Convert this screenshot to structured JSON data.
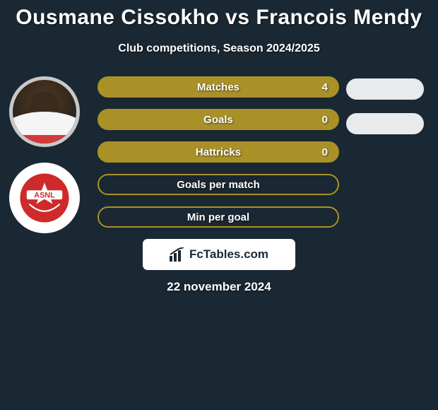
{
  "title": "Ousmane Cissokho vs Francois Mendy",
  "subtitle": "Club competitions, Season 2024/2025",
  "date": "22 november 2024",
  "brand": "FcTables.com",
  "colors": {
    "background": "#1a2833",
    "pill_fill": "#a99128",
    "oval_fill": "#e8eaec",
    "club_primary": "#cf2a2a",
    "club_text": "#ffffff"
  },
  "club_badge_text": "ASNL",
  "stats": [
    {
      "label": "Matches",
      "value": "4",
      "filled": true,
      "show_value": true,
      "show_right_oval": true
    },
    {
      "label": "Goals",
      "value": "0",
      "filled": true,
      "show_value": true,
      "show_right_oval": true
    },
    {
      "label": "Hattricks",
      "value": "0",
      "filled": true,
      "show_value": true,
      "show_right_oval": false
    },
    {
      "label": "Goals per match",
      "value": "",
      "filled": false,
      "show_value": false,
      "show_right_oval": false
    },
    {
      "label": "Min per goal",
      "value": "",
      "filled": false,
      "show_value": false,
      "show_right_oval": false
    }
  ]
}
